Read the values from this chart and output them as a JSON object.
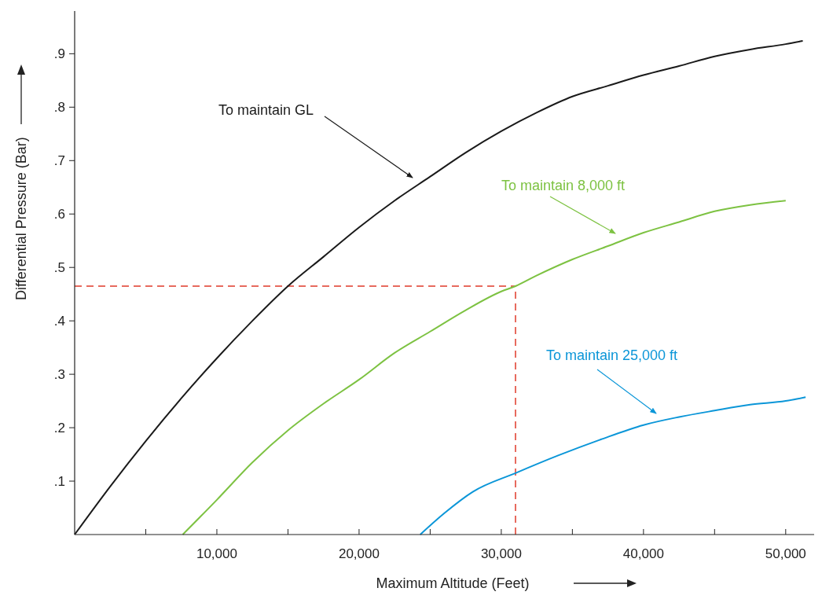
{
  "chart_data": {
    "type": "line",
    "xlabel": "Maximum Altitude (Feet)",
    "ylabel": "Differential Pressure (Bar)",
    "xlim": [
      0,
      52000
    ],
    "ylim": [
      0,
      0.98
    ],
    "xticks": [
      {
        "value": 5000,
        "label": null
      },
      {
        "value": 10000,
        "label": "10,000"
      },
      {
        "value": 15000,
        "label": null
      },
      {
        "value": 20000,
        "label": "20,000"
      },
      {
        "value": 25000,
        "label": null
      },
      {
        "value": 30000,
        "label": "30,000"
      },
      {
        "value": 35000,
        "label": null
      },
      {
        "value": 40000,
        "label": "40,000"
      },
      {
        "value": 45000,
        "label": null
      },
      {
        "value": 50000,
        "label": "50,000"
      }
    ],
    "yticks": [
      {
        "value": 0.1,
        "label": ".1"
      },
      {
        "value": 0.2,
        "label": ".2"
      },
      {
        "value": 0.3,
        "label": ".3"
      },
      {
        "value": 0.4,
        "label": ".4"
      },
      {
        "value": 0.5,
        "label": ".5"
      },
      {
        "value": 0.6,
        "label": ".6"
      },
      {
        "value": 0.7,
        "label": ".7"
      },
      {
        "value": 0.8,
        "label": ".8"
      },
      {
        "value": 0.9,
        "label": ".9"
      }
    ],
    "grid": false,
    "marker": "none",
    "line_style": "solid",
    "series": [
      {
        "color": "#1a1a1a",
        "x": [
          0,
          2500,
          5000,
          7500,
          10000,
          12500,
          15000,
          17500,
          20000,
          22500,
          25000,
          27500,
          30000,
          32500,
          35000,
          37500,
          40000,
          42500,
          45000,
          47500,
          50000,
          51200
        ],
        "values": [
          0,
          0.09,
          0.175,
          0.255,
          0.33,
          0.4,
          0.465,
          0.52,
          0.575,
          0.625,
          0.67,
          0.715,
          0.755,
          0.79,
          0.82,
          0.84,
          0.86,
          0.877,
          0.895,
          0.908,
          0.918,
          0.924
        ]
      },
      {
        "color": "#7dc242",
        "x": [
          7600,
          10000,
          12500,
          15000,
          17500,
          20000,
          22500,
          25000,
          27500,
          30000,
          31000,
          32500,
          35000,
          37500,
          40000,
          42500,
          45000,
          47500,
          50000
        ],
        "values": [
          0,
          0.065,
          0.135,
          0.195,
          0.245,
          0.29,
          0.34,
          0.38,
          0.42,
          0.455,
          0.465,
          0.485,
          0.515,
          0.54,
          0.565,
          0.585,
          0.605,
          0.617,
          0.625
        ]
      },
      {
        "color": "#0b96d8",
        "x": [
          24300,
          26000,
          28000,
          31000,
          34000,
          37000,
          40000,
          42500,
          45000,
          47500,
          50000,
          51400
        ],
        "values": [
          0,
          0.04,
          0.08,
          0.115,
          0.148,
          0.178,
          0.205,
          0.22,
          0.232,
          0.243,
          0.25,
          0.257
        ]
      }
    ],
    "ref_lines": [
      {
        "axis": "y",
        "value": 0.465,
        "color": "#e03a2a",
        "line_style": "dashed"
      },
      {
        "axis": "x",
        "value": 31000,
        "color": "#e03a2a",
        "line_style": "dashed"
      }
    ],
    "annotations": [
      "To maintain GL",
      "To maintain 8,000 ft",
      "To maintain 25,000 ft"
    ]
  }
}
